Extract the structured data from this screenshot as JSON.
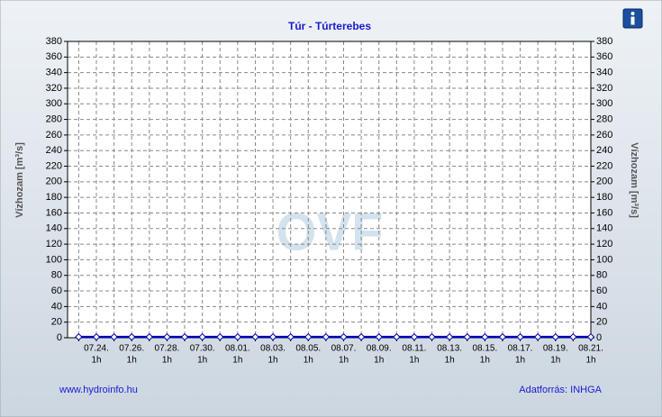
{
  "chart_data": {
    "type": "line",
    "title": "Túr - Túrterebes",
    "y_label": "Vízhozam [m³/s]",
    "y2_label": "Vízhozam [m³/s]",
    "watermark": "OVF",
    "categories": [
      null,
      "07.24.",
      null,
      "07.26.",
      null,
      "07.28.",
      null,
      "07.30.",
      null,
      "08.01.",
      null,
      "08.03.",
      null,
      "08.05.",
      null,
      "08.07.",
      null,
      "08.09.",
      null,
      "08.11.",
      null,
      "08.13.",
      null,
      "08.15.",
      null,
      "08.17.",
      null,
      "08.19.",
      null,
      "08.21."
    ],
    "x_sublabel": "1h",
    "series": [
      {
        "name": "Vízhozam",
        "color": "#0000b0",
        "values": [
          1,
          1,
          1,
          1,
          1,
          1,
          1,
          1,
          1,
          1,
          1,
          1,
          1,
          1,
          1,
          1,
          1,
          1,
          1,
          1,
          1,
          1,
          1,
          1,
          1,
          1,
          1,
          1,
          1,
          1
        ]
      }
    ],
    "ylim": [
      0,
      380
    ],
    "yticks": [
      0,
      20,
      40,
      60,
      80,
      100,
      120,
      140,
      160,
      180,
      200,
      220,
      240,
      260,
      280,
      300,
      320,
      340,
      360,
      380
    ],
    "grid": true,
    "footer_left": "www.hydroinfo.hu",
    "footer_right": "Adatforrás: INHGA"
  }
}
